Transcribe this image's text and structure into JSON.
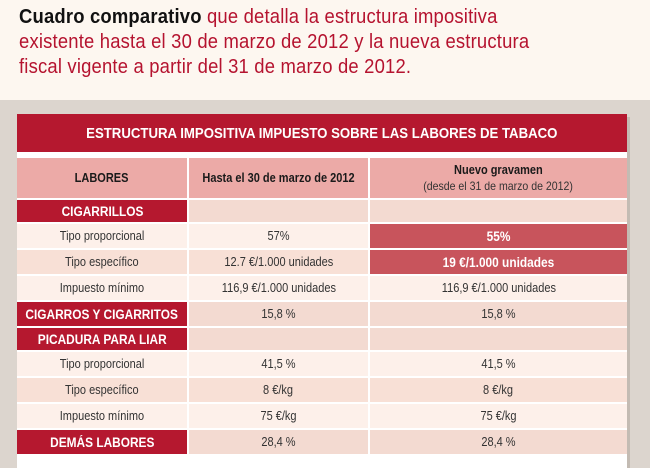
{
  "intro": {
    "lead": "Cuadro comparativo",
    "rest": " que detalla la estructura impositiva existente hasta el 30 de marzo de 2012 y la nueva estructura fiscal vigente a partir del 31 de marzo de 2012."
  },
  "table": {
    "title": "ESTRUCTURA IMPOSITIVA IMPUESTO SOBRE LAS  LABORES DE TABACO",
    "headers": {
      "labores": "LABORES",
      "hasta": "Hasta el 30 de marzo de 2012",
      "nuevo": "Nuevo gravamen",
      "nuevo_sub": "(desde el 31 de marzo de 2012)"
    },
    "rows": [
      {
        "label": "CIGARRILLOS",
        "old": "",
        "new": ""
      },
      {
        "label": "Tipo proporcional",
        "old": "57%",
        "new": "55%"
      },
      {
        "label": "Tipo específico",
        "old": "12.7 €/1.000 unidades",
        "new": "19 €/1.000 unidades"
      },
      {
        "label": "Impuesto mínimo",
        "old": "116,9 €/1.000 unidades",
        "new": "116,9 €/1.000 unidades"
      },
      {
        "label": "CIGARROS Y CIGARRITOS",
        "old": "15,8 %",
        "new": "15,8 %"
      },
      {
        "label": "PICADURA PARA LIAR",
        "old": "",
        "new": ""
      },
      {
        "label": "Tipo proporcional",
        "old": "41,5 %",
        "new": "41,5 %"
      },
      {
        "label": "Tipo específico",
        "old": "8 €/kg",
        "new": "8 €/kg"
      },
      {
        "label": "Impuesto mínimo",
        "old": "75 €/kg",
        "new": "75 €/kg"
      },
      {
        "label": "DEMÁS LABORES",
        "old": "28,4 %",
        "new": "28,4 %"
      }
    ]
  },
  "colors": {
    "accent": "#b5182f",
    "header_bg": "#ecaaa7",
    "highlight": "#c8545c"
  }
}
